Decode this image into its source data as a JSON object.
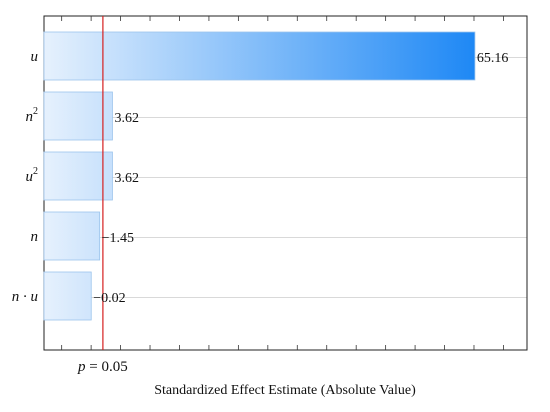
{
  "chart_data": {
    "type": "bar",
    "orientation": "horizontal",
    "xlabel": "Standardized Effect Estimate (Absolute Value)",
    "categories": [
      {
        "base": "u",
        "sup": ""
      },
      {
        "base": "n",
        "sup": "2"
      },
      {
        "base": "u",
        "sup": "2"
      },
      {
        "base": "n",
        "sup": ""
      },
      {
        "base": "n · u",
        "sup": ""
      }
    ],
    "values": [
      65.16,
      3.62,
      3.62,
      1.45,
      0.02
    ],
    "value_labels": [
      "65.16",
      "3.62",
      "3.62",
      "−1.45",
      "−0.02"
    ],
    "reference_line": {
      "value": 2.0,
      "label_var": "p",
      "label_rest": " = 0.05",
      "color": "#d62020"
    },
    "xlim": [
      -8,
      74
    ],
    "grid": {
      "horizontal": true,
      "vertical": false
    },
    "bar_color_start": "#e6f1fd",
    "bar_color_end": "#1e88f5",
    "legend": "none"
  }
}
